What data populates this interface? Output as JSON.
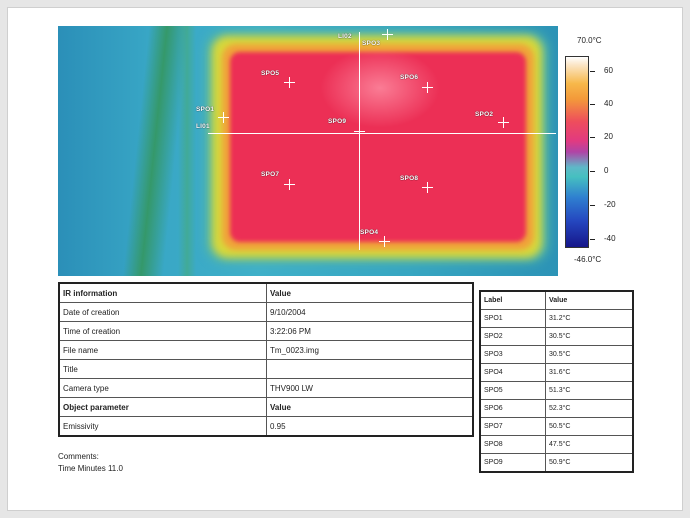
{
  "scale": {
    "max_label": "70.0°C",
    "min_label": "-46.0°C",
    "ticks": [
      "60",
      "40",
      "20",
      "0",
      "-20",
      "-40"
    ]
  },
  "markers": {
    "li02": "LI02",
    "spo3": "SPO3",
    "spo5": "SPO5",
    "spo6": "SPO6",
    "spo1": "SPO1",
    "li01": "LI01",
    "spo9": "SPO9",
    "spo2": "SPO2",
    "spo7": "SPO7",
    "spo8": "SPO8",
    "spo4": "SPO4"
  },
  "info_table": {
    "headers": [
      "IR information",
      "Value"
    ],
    "rows": [
      [
        "Date of creation",
        "9/10/2004"
      ],
      [
        "Time of creation",
        "3:22:06 PM"
      ],
      [
        "File name",
        "Tm_0023.img"
      ],
      [
        "Title",
        ""
      ],
      [
        "Camera type",
        "THV900 LW"
      ]
    ],
    "section_header": [
      "Object parameter",
      "Value"
    ],
    "section_rows": [
      [
        "Emissivity",
        "0.95"
      ]
    ]
  },
  "comments": {
    "label": "Comments:",
    "value": "Time Minutes 11.0"
  },
  "spot_table": {
    "headers": [
      "Label",
      "Value"
    ],
    "rows": [
      [
        "SPO1",
        "31.2°C"
      ],
      [
        "SPO2",
        "30.5°C"
      ],
      [
        "SPO3",
        "30.5°C"
      ],
      [
        "SPO4",
        "31.6°C"
      ],
      [
        "SPO5",
        "51.3°C"
      ],
      [
        "SPO6",
        "52.3°C"
      ],
      [
        "SPO7",
        "50.5°C"
      ],
      [
        "SPO8",
        "47.5°C"
      ],
      [
        "SPO9",
        "50.9°C"
      ]
    ]
  }
}
